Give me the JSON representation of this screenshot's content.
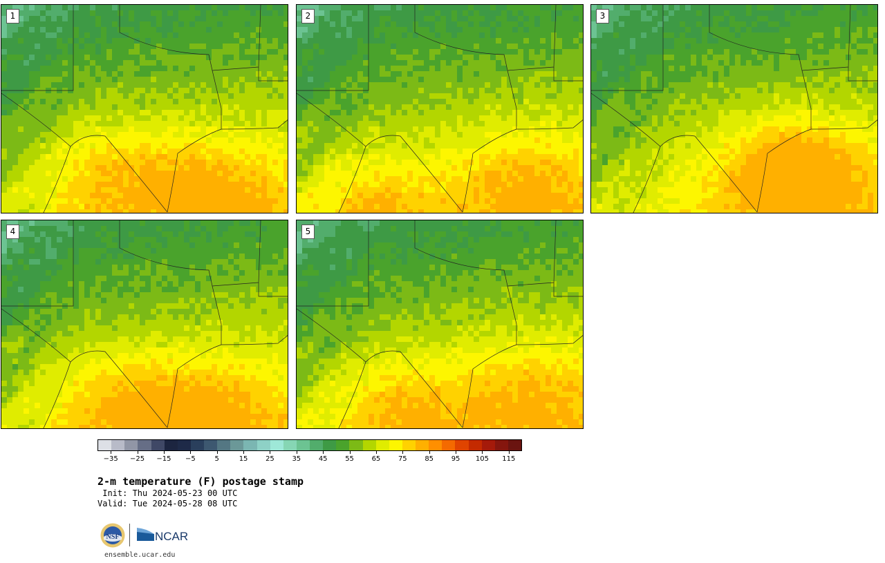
{
  "panels": [
    {
      "label": "1"
    },
    {
      "label": "2"
    },
    {
      "label": "3"
    },
    {
      "label": "4"
    },
    {
      "label": "5"
    }
  ],
  "colorbar": {
    "colors": [
      "#dde0e6",
      "#b8bbc8",
      "#9196a6",
      "#666e86",
      "#3f4866",
      "#1c2540",
      "#1e2a48",
      "#2a3f5c",
      "#3d5870",
      "#547783",
      "#6b9898",
      "#7bb6b2",
      "#8ed1c6",
      "#9ee8d8",
      "#86d6b4",
      "#6cc392",
      "#52ad6c",
      "#3e9a45",
      "#4aa32c",
      "#7cba16",
      "#b3d600",
      "#e0ec00",
      "#fdf600",
      "#ffd200",
      "#ffb000",
      "#ff8f00",
      "#f46a00",
      "#e04400",
      "#c42a00",
      "#a51a0a",
      "#85160e",
      "#6a1410"
    ],
    "ticks": [
      "−35",
      "−25",
      "−15",
      "−5",
      "5",
      "15",
      "25",
      "35",
      "45",
      "55",
      "65",
      "75",
      "85",
      "95",
      "105",
      "115"
    ],
    "tick_values": [
      -35,
      -25,
      -15,
      -5,
      5,
      15,
      25,
      35,
      45,
      55,
      65,
      75,
      85,
      95,
      105,
      115
    ],
    "min": -40,
    "max": 120
  },
  "title": "2-m temperature (F) postage stamp",
  "init": " Init: Thu 2024-05-23 00 UTC",
  "valid": "Valid: Tue 2024-05-28 08 UTC",
  "logos": {
    "nsf": "NSF",
    "ncar": "NCAR"
  },
  "site": "ensemble.ucar.edu"
}
